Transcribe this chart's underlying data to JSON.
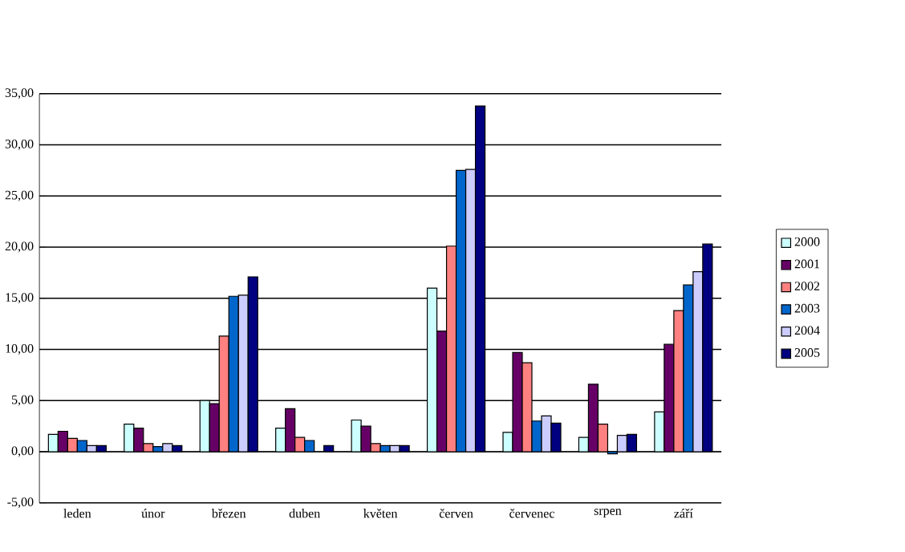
{
  "chart_data": {
    "type": "bar",
    "categories": [
      "leden",
      "únor",
      "březen",
      "duben",
      "květen",
      "červen",
      "červenec",
      "srpen",
      "září"
    ],
    "series": [
      {
        "name": "2000",
        "color": "#ccffff",
        "values": [
          1.7,
          2.7,
          5.0,
          2.3,
          3.1,
          16.0,
          1.9,
          1.4,
          3.9
        ]
      },
      {
        "name": "2001",
        "color": "#660066",
        "values": [
          2.0,
          2.3,
          4.7,
          4.2,
          2.5,
          11.8,
          9.7,
          6.6,
          10.5
        ]
      },
      {
        "name": "2002",
        "color": "#ff8080",
        "values": [
          1.3,
          0.8,
          11.3,
          1.4,
          0.8,
          20.1,
          8.7,
          2.7,
          13.8
        ]
      },
      {
        "name": "2003",
        "color": "#0066cc",
        "values": [
          1.1,
          0.5,
          15.2,
          1.1,
          0.6,
          27.5,
          3.0,
          -0.2,
          16.3
        ]
      },
      {
        "name": "2004",
        "color": "#ccccff",
        "values": [
          0.6,
          0.8,
          15.3,
          null,
          0.6,
          27.6,
          3.5,
          1.6,
          17.6
        ]
      },
      {
        "name": "2005",
        "color": "#000080",
        "values": [
          0.6,
          0.6,
          17.1,
          0.6,
          0.6,
          33.8,
          2.8,
          1.7,
          20.3
        ]
      }
    ],
    "ylim": [
      -5,
      35
    ],
    "yticks": [
      {
        "value": -5,
        "label": "-5,00"
      },
      {
        "value": 0,
        "label": "0,00"
      },
      {
        "value": 5,
        "label": "5,00"
      },
      {
        "value": 10,
        "label": "10,00"
      },
      {
        "value": 15,
        "label": "15,00"
      },
      {
        "value": 20,
        "label": "20,00"
      },
      {
        "value": 25,
        "label": "25,00"
      },
      {
        "value": 30,
        "label": "30,00"
      },
      {
        "value": 35,
        "label": "35,00"
      }
    ],
    "grid": "y",
    "legend": "right"
  }
}
